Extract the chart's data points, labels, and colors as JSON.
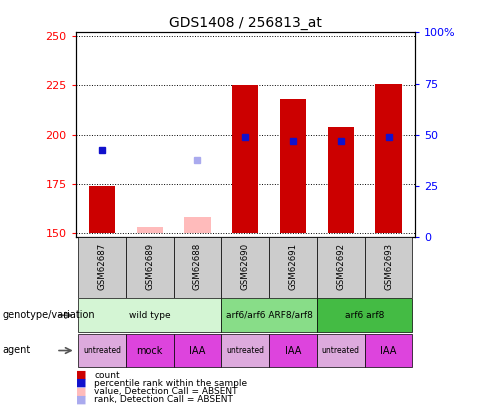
{
  "title": "GDS1408 / 256813_at",
  "samples": [
    "GSM62687",
    "GSM62689",
    "GSM62688",
    "GSM62690",
    "GSM62691",
    "GSM62692",
    "GSM62693"
  ],
  "ylim_left": [
    148,
    252
  ],
  "ylim_right": [
    0,
    100
  ],
  "yticks_left": [
    150,
    175,
    200,
    225,
    250
  ],
  "yticks_right": [
    0,
    25,
    50,
    75,
    100
  ],
  "bar_bottoms": [
    150,
    150,
    150,
    150,
    150,
    150,
    150
  ],
  "bar_heights": [
    24,
    3,
    8,
    75,
    68,
    54,
    76
  ],
  "bar_absent": [
    false,
    true,
    true,
    false,
    false,
    false,
    false
  ],
  "bar_color_present": "#cc0000",
  "bar_color_absent": "#ffbbbb",
  "blue_squares_x": [
    0,
    3,
    4,
    5,
    6
  ],
  "blue_squares_y": [
    192,
    199,
    197,
    197,
    199
  ],
  "blue_absent_x": [
    2
  ],
  "blue_absent_y": [
    187
  ],
  "blue_color": "#1111cc",
  "blue_absent_color": "#aaaaee",
  "genotype_groups": [
    {
      "label": "wild type",
      "start": 0,
      "end": 3,
      "color": "#d4f5d4"
    },
    {
      "label": "arf6/arf6 ARF8/arf8",
      "start": 3,
      "end": 5,
      "color": "#88dd88"
    },
    {
      "label": "arf6 arf8",
      "start": 5,
      "end": 7,
      "color": "#44bb44"
    }
  ],
  "agent_groups": [
    {
      "label": "untreated",
      "start": 0,
      "end": 1,
      "color": "#ddaadd"
    },
    {
      "label": "mock",
      "start": 1,
      "end": 2,
      "color": "#dd44dd"
    },
    {
      "label": "IAA",
      "start": 2,
      "end": 3,
      "color": "#dd44dd"
    },
    {
      "label": "untreated",
      "start": 3,
      "end": 4,
      "color": "#ddaadd"
    },
    {
      "label": "IAA",
      "start": 4,
      "end": 5,
      "color": "#dd44dd"
    },
    {
      "label": "untreated",
      "start": 5,
      "end": 6,
      "color": "#ddaadd"
    },
    {
      "label": "IAA",
      "start": 6,
      "end": 7,
      "color": "#dd44dd"
    }
  ],
  "legend_items": [
    {
      "label": "count",
      "color": "#cc0000"
    },
    {
      "label": "percentile rank within the sample",
      "color": "#1111cc"
    },
    {
      "label": "value, Detection Call = ABSENT",
      "color": "#ffbbbb"
    },
    {
      "label": "rank, Detection Call = ABSENT",
      "color": "#aaaaee"
    }
  ],
  "sample_bg": "#cccccc"
}
